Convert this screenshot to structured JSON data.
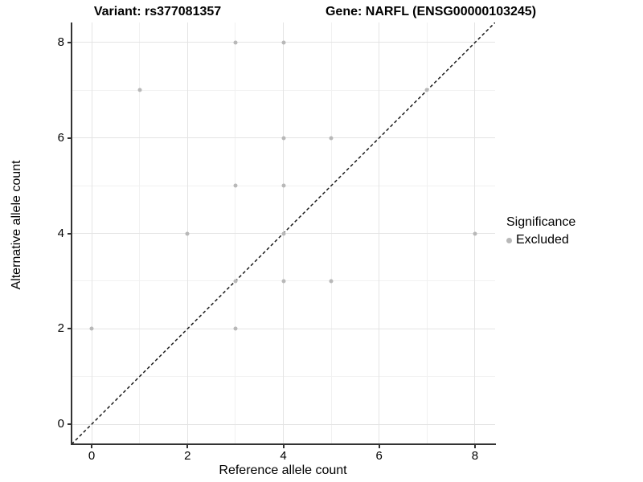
{
  "chart_data": {
    "type": "scatter",
    "title_left": "Variant: rs377081357",
    "title_right": "Gene: NARFL (ENSG00000103245)",
    "xlabel": "Reference allele count",
    "ylabel": "Alternative allele count",
    "x_ticks": [
      0,
      2,
      4,
      6,
      8
    ],
    "y_ticks": [
      0,
      2,
      4,
      6,
      8
    ],
    "minor_gridlines": [
      1,
      3,
      5,
      7
    ],
    "xlim": [
      -0.42,
      8.42
    ],
    "ylim": [
      -0.42,
      8.42
    ],
    "grid": true,
    "series": [
      {
        "name": "Excluded",
        "color": "#b8b8b8",
        "points": [
          [
            0,
            2
          ],
          [
            1,
            7
          ],
          [
            2,
            4
          ],
          [
            3,
            2
          ],
          [
            3,
            3
          ],
          [
            3,
            5
          ],
          [
            3,
            8
          ],
          [
            4,
            3
          ],
          [
            4,
            4
          ],
          [
            4,
            5
          ],
          [
            4,
            6
          ],
          [
            4,
            8
          ],
          [
            5,
            3
          ],
          [
            5,
            6
          ],
          [
            7,
            7
          ],
          [
            8,
            4
          ]
        ]
      }
    ],
    "reference_line": {
      "type": "identity",
      "style": "dashed",
      "color": "#1a1a1a"
    },
    "legend": {
      "position": "right",
      "title": "Significance",
      "items": [
        {
          "label": "Excluded",
          "color": "#b8b8b8"
        }
      ]
    },
    "colors": {
      "background": "#ffffff",
      "axis_line": "#333333",
      "grid_major": "#e4e4e4",
      "grid_minor": "#f1f1f1"
    }
  }
}
